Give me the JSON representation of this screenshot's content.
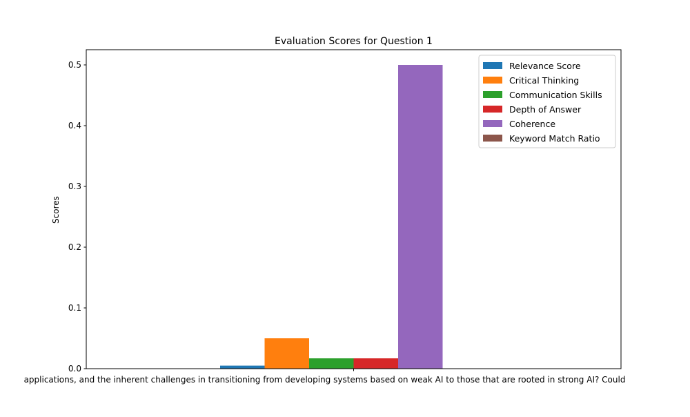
{
  "chart_data": {
    "type": "bar",
    "title": "Evaluation Scores for Question 1",
    "xlabel": "",
    "ylabel": "Scores",
    "categories": [
      "applications, and the inherent challenges in transitioning from developing systems based on weak AI to those that are rooted in strong AI? Could"
    ],
    "series": [
      {
        "name": "Relevance Score",
        "values": [
          0.005
        ],
        "color": "#1f77b4"
      },
      {
        "name": "Critical Thinking",
        "values": [
          0.05
        ],
        "color": "#ff7f0e"
      },
      {
        "name": "Communication Skills",
        "values": [
          0.017
        ],
        "color": "#2ca02c"
      },
      {
        "name": "Depth of Answer",
        "values": [
          0.017
        ],
        "color": "#d62728"
      },
      {
        "name": "Coherence",
        "values": [
          0.5
        ],
        "color": "#9467bd"
      },
      {
        "name": "Keyword Match Ratio",
        "values": [
          0.0
        ],
        "color": "#8c564b"
      }
    ],
    "ylim": [
      0,
      0.525
    ],
    "yticks": [
      "0.0",
      "0.1",
      "0.2",
      "0.3",
      "0.4",
      "0.5"
    ],
    "legend_position": "top-right",
    "grid": false
  }
}
